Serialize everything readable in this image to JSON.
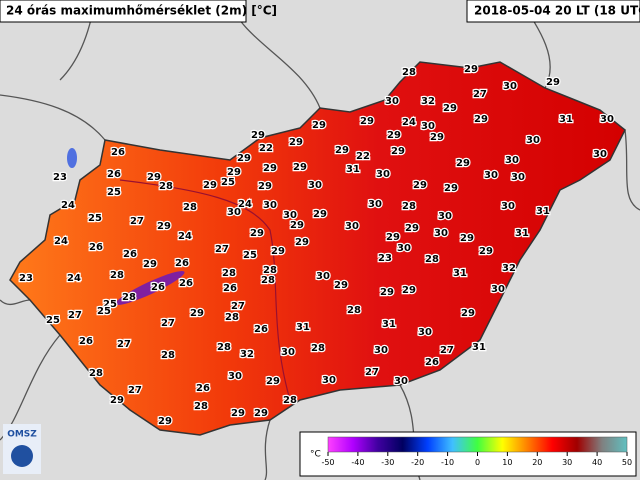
{
  "header": {
    "title": "24 órás maximumhőmérséklet (2m) [°C]",
    "timestamp": "2018-05-04 20 LT (18 UTC)"
  },
  "logo": "OMSZ",
  "stations": [
    28,
    29,
    29,
    30,
    27,
    30,
    32,
    29,
    29,
    31,
    30,
    24,
    30,
    29,
    29,
    29,
    22,
    29,
    29,
    29,
    30,
    30,
    29,
    22,
    29,
    30,
    26,
    29,
    29,
    29,
    31,
    30,
    29,
    30,
    30,
    29,
    29,
    25,
    26,
    23,
    29,
    28,
    25,
    29,
    30,
    29,
    29,
    24,
    28,
    24,
    30,
    30,
    30,
    29,
    30,
    28,
    30,
    30,
    31,
    25,
    27,
    29,
    30,
    29,
    29,
    30,
    29,
    31,
    24,
    24,
    29,
    29,
    26,
    26,
    27,
    25,
    29,
    29,
    30,
    29,
    28,
    23,
    29,
    26,
    28,
    28,
    28,
    24,
    23,
    30,
    29,
    31,
    32,
    28,
    26,
    26,
    28,
    26,
    25,
    29,
    29,
    30,
    25,
    25,
    27,
    27,
    29,
    27,
    28,
    28,
    31,
    29,
    31,
    30,
    26,
    26,
    27,
    28,
    28,
    30,
    30,
    31,
    27,
    28,
    32,
    26,
    28,
    30,
    29,
    30,
    30,
    27,
    27,
    26,
    29,
    28,
    28,
    29,
    29,
    29
  ],
  "legend": {
    "unit": "°C",
    "range": [
      -50,
      50
    ],
    "ticks": [
      -50,
      -40,
      -30,
      -20,
      -10,
      0,
      10,
      20,
      30,
      40,
      50
    ],
    "colors": [
      "#ff40ff",
      "#b000ff",
      "#4000a0",
      "#000060",
      "#0040ff",
      "#40c0ff",
      "#40ff40",
      "#ffff00",
      "#ff8000",
      "#ff0000",
      "#a00000",
      "#808080",
      "#60c0c0"
    ]
  }
}
